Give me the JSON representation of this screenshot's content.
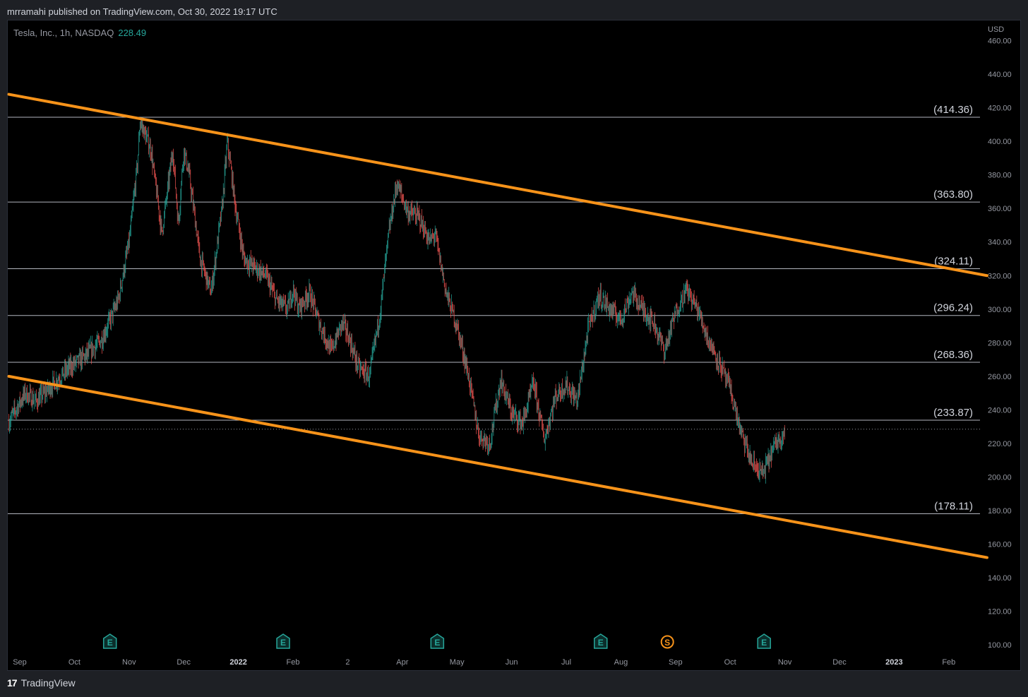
{
  "header": {
    "published": "mrramahi published on TradingView.com, Oct 30, 2022 19:17 UTC"
  },
  "legend": {
    "symbol": "Tesla, Inc., 1h, NASDAQ",
    "price": "228.49"
  },
  "footer": {
    "brand": "TradingView"
  },
  "colors": {
    "up": "#26a69a",
    "down": "#ef5350",
    "trendline": "#f7931a",
    "level": "#b2b5be",
    "axis_text": "#9598a1"
  },
  "chart_data": {
    "type": "candlestick",
    "currency": "USD",
    "ylim": [
      95,
      472
    ],
    "y_ticks": [
      100,
      120,
      140,
      160,
      180,
      200,
      220,
      240,
      260,
      280,
      300,
      320,
      340,
      360,
      380,
      400,
      420,
      440,
      460
    ],
    "y_tick_labels": [
      "100.00",
      "120.00",
      "140.00",
      "160.00",
      "180.00",
      "200.00",
      "220.00",
      "240.00",
      "260.00",
      "280.00",
      "300.00",
      "320.00",
      "340.00",
      "360.00",
      "380.00",
      "400.00",
      "420.00",
      "440.00",
      "460.00"
    ],
    "x_labels": [
      "Sep",
      "Oct",
      "Nov",
      "Dec",
      "2022",
      "Feb",
      "2",
      "Apr",
      "May",
      "Jun",
      "Jul",
      "Aug",
      "Sep",
      "Oct",
      "Nov",
      "Dec",
      "2023",
      "Feb"
    ],
    "x_label_index": [
      0.0,
      1.0,
      2.0,
      3.0,
      4.0,
      5.0,
      6.0,
      7.0,
      8.0,
      9.0,
      10.0,
      11.0,
      12.0,
      13.0,
      14.0,
      15.0,
      16.0,
      17.0
    ],
    "levels": [
      {
        "value": 414.36,
        "label": "(414.36)"
      },
      {
        "value": 363.8,
        "label": "(363.80)"
      },
      {
        "value": 324.11,
        "label": "(324.11)"
      },
      {
        "value": 296.24,
        "label": "(296.24)"
      },
      {
        "value": 268.36,
        "label": "(268.36)"
      },
      {
        "value": 233.87,
        "label": "(233.87)"
      },
      {
        "value": 178.11,
        "label": "(178.11)"
      }
    ],
    "last_price": 228.49,
    "trendlines": [
      {
        "name": "upper",
        "x": [
          -0.2,
          17.7
        ],
        "y": [
          428,
          320
        ]
      },
      {
        "name": "lower",
        "x": [
          -0.2,
          17.7
        ],
        "y": [
          260,
          152
        ]
      }
    ],
    "price_path": {
      "x": [
        -0.2,
        0.1,
        0.3,
        0.6,
        0.9,
        1.2,
        1.5,
        1.8,
        2.0,
        2.15,
        2.2,
        2.4,
        2.6,
        2.8,
        2.9,
        3.0,
        3.1,
        3.3,
        3.5,
        3.7,
        3.8,
        3.95,
        4.1,
        4.3,
        4.5,
        4.7,
        4.9,
        5.0,
        5.1,
        5.3,
        5.5,
        5.7,
        5.9,
        6.0,
        6.2,
        6.4,
        6.6,
        6.75,
        6.9,
        7.1,
        7.3,
        7.5,
        7.6,
        7.8,
        8.0,
        8.2,
        8.4,
        8.6,
        8.8,
        9.0,
        9.2,
        9.4,
        9.6,
        9.8,
        10.0,
        10.2,
        10.4,
        10.6,
        10.8,
        11.0,
        11.2,
        11.4,
        11.6,
        11.8,
        12.0,
        12.2,
        12.4,
        12.6,
        12.8,
        13.0,
        13.2,
        13.4,
        13.6,
        13.8,
        14.0
      ],
      "y": [
        233,
        250,
        245,
        255,
        265,
        272,
        282,
        305,
        340,
        385,
        412,
        395,
        345,
        395,
        350,
        395,
        380,
        330,
        310,
        360,
        400,
        360,
        330,
        325,
        320,
        305,
        300,
        312,
        300,
        310,
        290,
        275,
        292,
        285,
        265,
        260,
        300,
        345,
        375,
        358,
        355,
        340,
        345,
        310,
        290,
        262,
        225,
        220,
        258,
        238,
        232,
        256,
        222,
        248,
        255,
        245,
        288,
        308,
        300,
        294,
        310,
        300,
        292,
        275,
        298,
        312,
        300,
        282,
        268,
        252,
        226,
        208,
        202,
        218,
        228
      ]
    },
    "events": [
      {
        "label": "E",
        "x_index": 1.65,
        "color": "#26a69a"
      },
      {
        "label": "E",
        "x_index": 4.82,
        "color": "#26a69a"
      },
      {
        "label": "E",
        "x_index": 7.64,
        "color": "#26a69a"
      },
      {
        "label": "E",
        "x_index": 10.63,
        "color": "#26a69a"
      },
      {
        "label": "S",
        "x_index": 11.85,
        "color": "#f7931a"
      },
      {
        "label": "E",
        "x_index": 13.62,
        "color": "#26a69a"
      }
    ]
  }
}
